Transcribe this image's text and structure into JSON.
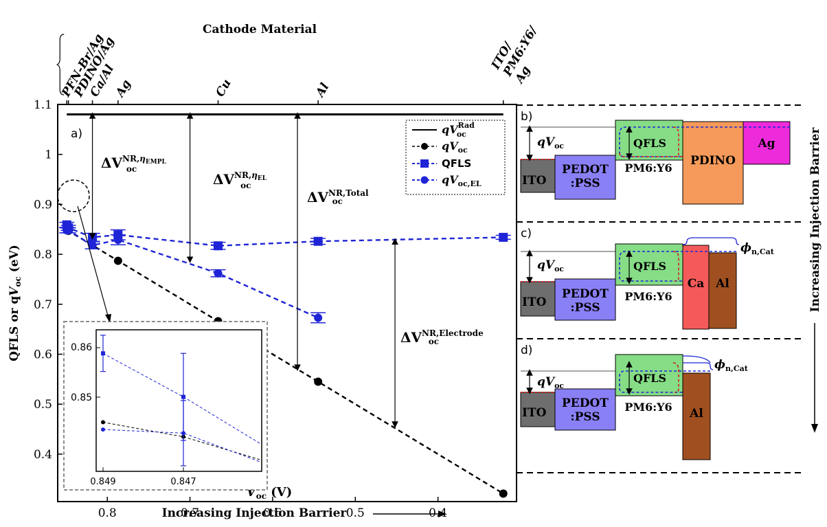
{
  "chart_data": {
    "type": "scatter",
    "panel_label": "a)",
    "xlabel": "V_oc (V)",
    "ylabel": "QFLS or qV_oc (eV)",
    "top_axis_title": "Cathode Material",
    "bottom_caption": "Increasing Injection Barrier",
    "xlim": [
      0.86,
      0.305
    ],
    "ylim": [
      0.305,
      1.1
    ],
    "x_ticks": [
      0.8,
      0.7,
      0.6,
      0.5,
      0.4
    ],
    "y_ticks": [
      0.4,
      0.5,
      0.6,
      0.7,
      0.8,
      0.9,
      1.0,
      1.1
    ],
    "top_ticks": [
      {
        "x": 0.849,
        "label": "PFN-Br/Ag"
      },
      {
        "x": 0.847,
        "label": "PDINO/Ag"
      },
      {
        "x": 0.818,
        "label": "Ca/Al"
      },
      {
        "x": 0.787,
        "label": "Ag"
      },
      {
        "x": 0.666,
        "label": "Cu"
      },
      {
        "x": 0.545,
        "label": "Al"
      },
      {
        "x": 0.321,
        "label": "ITO/PM6:Y6/Ag"
      }
    ],
    "series": [
      {
        "name": "qV_oc^Rad",
        "style": "solid-line",
        "color": "#000000",
        "x": [
          0.849,
          0.321
        ],
        "y": [
          1.08,
          1.08
        ]
      },
      {
        "name": "qV_oc",
        "style": "dashed-circle",
        "color": "#000000",
        "x": [
          0.849,
          0.847,
          0.818,
          0.787,
          0.666,
          0.545,
          0.321
        ],
        "y": [
          0.849,
          0.847,
          0.818,
          0.787,
          0.666,
          0.545,
          0.321
        ]
      },
      {
        "name": "QFLS",
        "style": "dashed-square",
        "color": "#1f24d6",
        "x": [
          0.849,
          0.847,
          0.818,
          0.787,
          0.666,
          0.545,
          0.321
        ],
        "y": [
          0.859,
          0.853,
          0.834,
          0.839,
          0.817,
          0.826,
          0.834
        ],
        "err": [
          0.005,
          0.005,
          0.008,
          0.01,
          0.007,
          0.006,
          0.004
        ]
      },
      {
        "name": "qV_oc,EL",
        "style": "dashed-circle",
        "color": "#1f24d6",
        "x": [
          0.849,
          0.847,
          0.818,
          0.787,
          0.666,
          0.545
        ],
        "y": [
          0.848,
          0.848,
          0.818,
          0.829,
          0.762,
          0.673
        ],
        "err": [
          0.005,
          0.005,
          0.007,
          0.01,
          0.007,
          0.01
        ]
      }
    ],
    "annotations": [
      {
        "text": "ΔV_oc^NR,η_EMPL"
      },
      {
        "text": "ΔV_oc^NR,η_EL"
      },
      {
        "text": "ΔV_oc^NR,Total"
      },
      {
        "text": "ΔV_oc^NR,Electrode"
      }
    ],
    "inset": {
      "x_ticks": [
        "0.849",
        "0.847"
      ],
      "y_ticks": [
        "0.86",
        "0.85"
      ],
      "series": [
        {
          "name": "QFLS",
          "y": [
            0.8585,
            0.8525,
            0.846
          ],
          "err": [
            0.0025,
            0.006,
            0
          ]
        },
        {
          "name": "qV_oc",
          "y": [
            0.849,
            0.847,
            0.8438
          ],
          "err": [
            0,
            0,
            0
          ]
        },
        {
          "name": "qV_oc,EL",
          "y": [
            0.848,
            0.8475,
            0.8435
          ],
          "err": [
            0,
            0.0045,
            0
          ]
        }
      ]
    }
  },
  "legend": {
    "rad": "qV",
    "rad_sub": "oc",
    "rad_sup": "Rad",
    "voc": "qV",
    "voc_sub": "oc",
    "qfls": "QFLS",
    "el": "qV",
    "el_sub": "oc,EL"
  },
  "diagrams": {
    "right_caption": "Increasing Injection Barrier",
    "b": {
      "label": "b)",
      "voc": "qV",
      "voc_sub": "oc",
      "ito": "ITO",
      "pedot1": "PEDOT",
      "pedot2": ":PSS",
      "pm6": "PM6:Y6",
      "qfls": "QFLS",
      "cat1": "PDINO",
      "cat2": "Ag"
    },
    "c": {
      "label": "c)",
      "voc": "qV",
      "voc_sub": "oc",
      "ito": "ITO",
      "pedot1": "PEDOT",
      "pedot2": ":PSS",
      "pm6": "PM6:Y6",
      "qfls": "QFLS",
      "cat1": "Ca",
      "cat2": "Al",
      "phi": "ϕ",
      "phi_sub": "n,Cat"
    },
    "d": {
      "label": "d)",
      "voc": "qV",
      "voc_sub": "oc",
      "ito": "ITO",
      "pedot1": "PEDOT",
      "pedot2": ":PSS",
      "pm6": "PM6:Y6",
      "qfls": "QFLS",
      "cat1": "Al",
      "phi": "ϕ",
      "phi_sub": "n,Cat"
    },
    "colors": {
      "ito": "#6e6e6e",
      "pedot": "#8a80f5",
      "pm6": "#86dd86",
      "pdino": "#f59a5a",
      "ag": "#ee2bdb",
      "ca": "#f55a5a",
      "al": "#a05020"
    }
  }
}
